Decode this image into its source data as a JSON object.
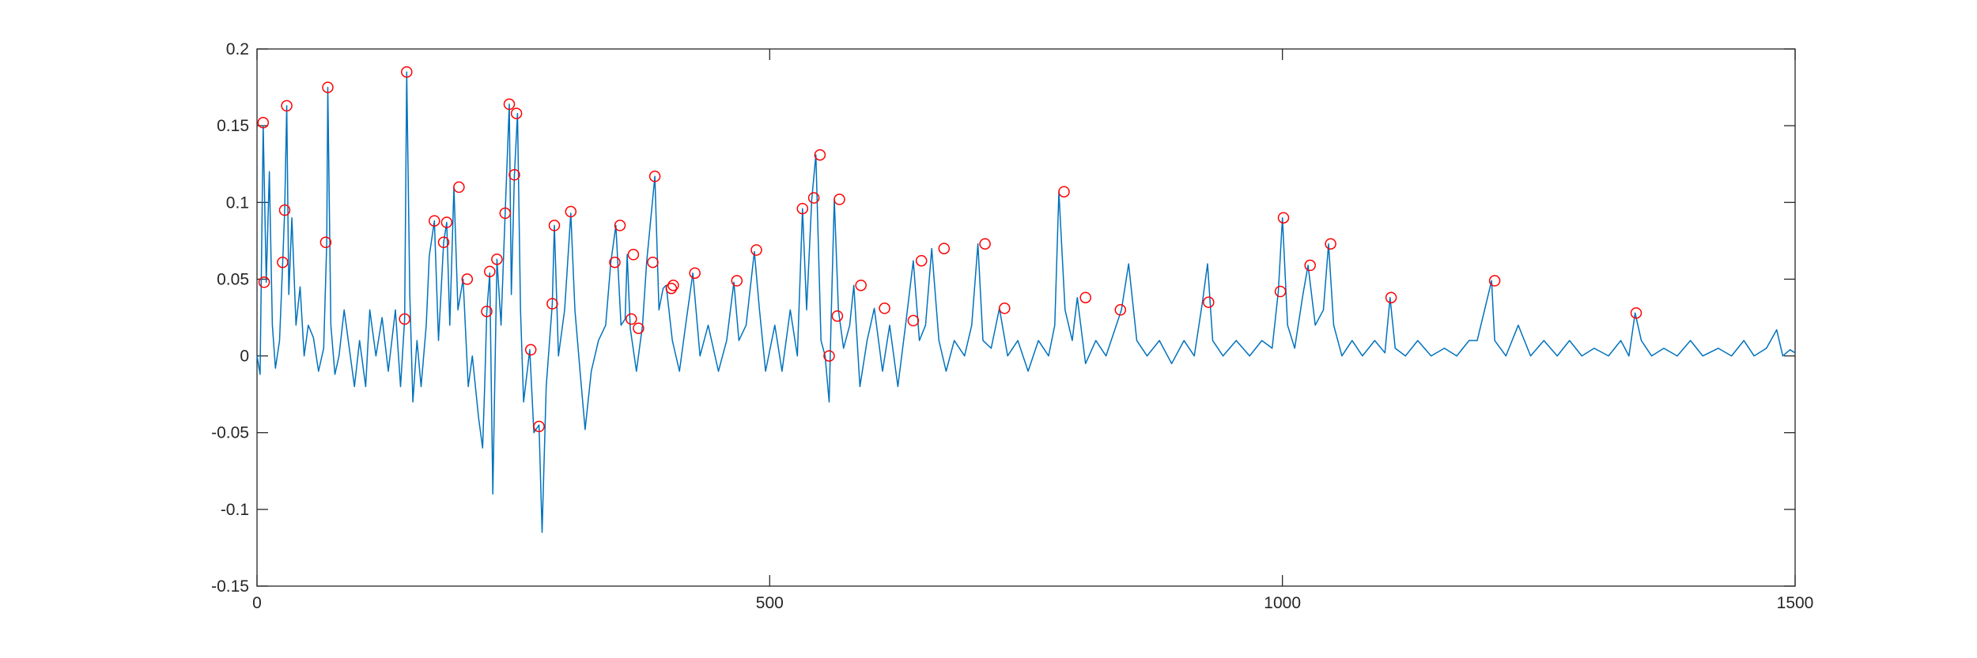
{
  "chart_data": {
    "type": "line",
    "title": "",
    "xlabel": "",
    "ylabel": "",
    "xlim": [
      0,
      1500
    ],
    "ylim": [
      -0.15,
      0.2
    ],
    "x_ticks": [
      "0",
      "500",
      "1000",
      "1500"
    ],
    "y_ticks": [
      "-0.15",
      "-0.1",
      "-0.05",
      "0",
      "0.05",
      "0.1",
      "0.15",
      "0.2"
    ],
    "x_tick_values": [
      0,
      500,
      1000,
      1500
    ],
    "y_tick_values": [
      -0.15,
      -0.1,
      -0.05,
      0,
      0.05,
      0.1,
      0.15,
      0.2
    ],
    "grid": false,
    "box": true,
    "colors": {
      "line": "#0072BD",
      "markers": "#FF0000",
      "axes": "#262626"
    },
    "series": [
      {
        "style": "line",
        "points": [
          [
            0,
            0.0
          ],
          [
            3,
            -0.012
          ],
          [
            6,
            0.15
          ],
          [
            9,
            0.048
          ],
          [
            12,
            0.12
          ],
          [
            15,
            0.02
          ],
          [
            18,
            -0.008
          ],
          [
            22,
            0.01
          ],
          [
            25,
            0.06
          ],
          [
            27,
            0.095
          ],
          [
            29,
            0.163
          ],
          [
            31,
            0.04
          ],
          [
            34,
            0.09
          ],
          [
            38,
            0.02
          ],
          [
            42,
            0.045
          ],
          [
            46,
            0.0
          ],
          [
            50,
            0.02
          ],
          [
            55,
            0.012
          ],
          [
            60,
            -0.01
          ],
          [
            65,
            0.005
          ],
          [
            68,
            0.074
          ],
          [
            69,
            0.175
          ],
          [
            72,
            0.02
          ],
          [
            76,
            -0.012
          ],
          [
            80,
            0.0
          ],
          [
            85,
            0.03
          ],
          [
            90,
            0.005
          ],
          [
            95,
            -0.02
          ],
          [
            100,
            0.01
          ],
          [
            106,
            -0.02
          ],
          [
            110,
            0.03
          ],
          [
            116,
            0.0
          ],
          [
            122,
            0.025
          ],
          [
            128,
            -0.01
          ],
          [
            135,
            0.03
          ],
          [
            140,
            -0.02
          ],
          [
            144,
            0.024
          ],
          [
            146,
            0.185
          ],
          [
            149,
            0.04
          ],
          [
            152,
            -0.03
          ],
          [
            156,
            0.01
          ],
          [
            160,
            -0.02
          ],
          [
            165,
            0.02
          ],
          [
            168,
            0.065
          ],
          [
            173,
            0.088
          ],
          [
            177,
            0.01
          ],
          [
            182,
            0.074
          ],
          [
            185,
            0.087
          ],
          [
            188,
            0.02
          ],
          [
            192,
            0.11
          ],
          [
            196,
            0.03
          ],
          [
            201,
            0.05
          ],
          [
            206,
            -0.02
          ],
          [
            210,
            0.0
          ],
          [
            216,
            -0.04
          ],
          [
            220,
            -0.06
          ],
          [
            222,
            -0.02
          ],
          [
            224,
            0.028
          ],
          [
            227,
            0.054
          ],
          [
            230,
            -0.09
          ],
          [
            234,
            0.063
          ],
          [
            238,
            0.02
          ],
          [
            242,
            0.093
          ],
          [
            246,
            0.164
          ],
          [
            248,
            0.04
          ],
          [
            251,
            0.118
          ],
          [
            254,
            0.158
          ],
          [
            257,
            0.03
          ],
          [
            260,
            -0.03
          ],
          [
            266,
            0.004
          ],
          [
            270,
            -0.05
          ],
          [
            275,
            -0.045
          ],
          [
            278,
            -0.115
          ],
          [
            282,
            -0.02
          ],
          [
            288,
            0.034
          ],
          [
            290,
            0.085
          ],
          [
            294,
            0.0
          ],
          [
            300,
            0.03
          ],
          [
            306,
            0.093
          ],
          [
            310,
            0.03
          ],
          [
            315,
            -0.01
          ],
          [
            320,
            -0.048
          ],
          [
            326,
            -0.01
          ],
          [
            333,
            0.01
          ],
          [
            340,
            0.02
          ],
          [
            345,
            0.061
          ],
          [
            350,
            0.085
          ],
          [
            355,
            0.02
          ],
          [
            359,
            0.024
          ],
          [
            361,
            0.066
          ],
          [
            364,
            0.018
          ],
          [
            370,
            -0.01
          ],
          [
            376,
            0.02
          ],
          [
            380,
            0.061
          ],
          [
            388,
            0.117
          ],
          [
            392,
            0.03
          ],
          [
            396,
            0.044
          ],
          [
            399,
            0.046
          ],
          [
            405,
            0.01
          ],
          [
            412,
            -0.01
          ],
          [
            418,
            0.02
          ],
          [
            425,
            0.054
          ],
          [
            432,
            0.0
          ],
          [
            440,
            0.02
          ],
          [
            450,
            -0.01
          ],
          [
            458,
            0.01
          ],
          [
            465,
            0.048
          ],
          [
            470,
            0.01
          ],
          [
            477,
            0.02
          ],
          [
            485,
            0.068
          ],
          [
            490,
            0.03
          ],
          [
            496,
            -0.01
          ],
          [
            505,
            0.02
          ],
          [
            512,
            -0.01
          ],
          [
            520,
            0.03
          ],
          [
            527,
            0.0
          ],
          [
            532,
            0.096
          ],
          [
            536,
            0.03
          ],
          [
            541,
            0.102
          ],
          [
            545,
            0.131
          ],
          [
            550,
            0.01
          ],
          [
            554,
            0.0
          ],
          [
            558,
            -0.03
          ],
          [
            560,
            0.026
          ],
          [
            563,
            0.102
          ],
          [
            567,
            0.03
          ],
          [
            572,
            0.005
          ],
          [
            578,
            0.02
          ],
          [
            582,
            0.046
          ],
          [
            588,
            -0.02
          ],
          [
            595,
            0.01
          ],
          [
            602,
            0.031
          ],
          [
            610,
            -0.01
          ],
          [
            617,
            0.02
          ],
          [
            625,
            -0.02
          ],
          [
            633,
            0.023
          ],
          [
            640,
            0.062
          ],
          [
            646,
            0.01
          ],
          [
            652,
            0.02
          ],
          [
            658,
            0.07
          ],
          [
            665,
            0.01
          ],
          [
            672,
            -0.01
          ],
          [
            680,
            0.01
          ],
          [
            690,
            0.0
          ],
          [
            697,
            0.02
          ],
          [
            703,
            0.073
          ],
          [
            708,
            0.01
          ],
          [
            716,
            0.005
          ],
          [
            724,
            0.031
          ],
          [
            732,
            0.0
          ],
          [
            742,
            0.01
          ],
          [
            752,
            -0.01
          ],
          [
            762,
            0.01
          ],
          [
            772,
            0.0
          ],
          [
            778,
            0.02
          ],
          [
            782,
            0.107
          ],
          [
            788,
            0.03
          ],
          [
            795,
            0.01
          ],
          [
            800,
            0.038
          ],
          [
            808,
            -0.005
          ],
          [
            818,
            0.01
          ],
          [
            828,
            0.0
          ],
          [
            838,
            0.02
          ],
          [
            843,
            0.03
          ],
          [
            850,
            0.06
          ],
          [
            858,
            0.01
          ],
          [
            868,
            0.0
          ],
          [
            880,
            0.01
          ],
          [
            892,
            -0.005
          ],
          [
            904,
            0.01
          ],
          [
            914,
            0.0
          ],
          [
            922,
            0.035
          ],
          [
            927,
            0.06
          ],
          [
            932,
            0.01
          ],
          [
            942,
            0.0
          ],
          [
            955,
            0.01
          ],
          [
            968,
            0.0
          ],
          [
            980,
            0.01
          ],
          [
            990,
            0.005
          ],
          [
            996,
            0.042
          ],
          [
            1000,
            0.09
          ],
          [
            1005,
            0.02
          ],
          [
            1012,
            0.005
          ],
          [
            1020,
            0.04
          ],
          [
            1025,
            0.059
          ],
          [
            1032,
            0.02
          ],
          [
            1040,
            0.03
          ],
          [
            1045,
            0.073
          ],
          [
            1050,
            0.02
          ],
          [
            1058,
            0.0
          ],
          [
            1068,
            0.01
          ],
          [
            1078,
            0.0
          ],
          [
            1090,
            0.01
          ],
          [
            1100,
            0.002
          ],
          [
            1105,
            0.038
          ],
          [
            1110,
            0.005
          ],
          [
            1120,
            0.0
          ],
          [
            1132,
            0.01
          ],
          [
            1145,
            0.0
          ],
          [
            1158,
            0.005
          ],
          [
            1170,
            0.0
          ],
          [
            1182,
            0.01
          ],
          [
            1190,
            0.01
          ],
          [
            1204,
            0.049
          ],
          [
            1207,
            0.01
          ],
          [
            1218,
            0.0
          ],
          [
            1230,
            0.02
          ],
          [
            1242,
            0.0
          ],
          [
            1255,
            0.01
          ],
          [
            1268,
            0.0
          ],
          [
            1280,
            0.01
          ],
          [
            1292,
            0.0
          ],
          [
            1304,
            0.005
          ],
          [
            1318,
            0.0
          ],
          [
            1330,
            0.01
          ],
          [
            1338,
            0.0
          ],
          [
            1344,
            0.028
          ],
          [
            1350,
            0.01
          ],
          [
            1360,
            0.0
          ],
          [
            1372,
            0.005
          ],
          [
            1385,
            0.0
          ],
          [
            1398,
            0.01
          ],
          [
            1410,
            0.0
          ],
          [
            1425,
            0.005
          ],
          [
            1438,
            0.0
          ],
          [
            1450,
            0.01
          ],
          [
            1460,
            0.0
          ],
          [
            1472,
            0.005
          ],
          [
            1482,
            0.017
          ],
          [
            1488,
            0.0
          ],
          [
            1495,
            0.004
          ],
          [
            1500,
            0.002
          ]
        ]
      },
      {
        "style": "markers",
        "marker": "circle",
        "points": [
          [
            6,
            0.152
          ],
          [
            7,
            0.048
          ],
          [
            25,
            0.061
          ],
          [
            27,
            0.095
          ],
          [
            29,
            0.163
          ],
          [
            67,
            0.074
          ],
          [
            69,
            0.175
          ],
          [
            146,
            0.185
          ],
          [
            144,
            0.024
          ],
          [
            173,
            0.088
          ],
          [
            182,
            0.074
          ],
          [
            185,
            0.087
          ],
          [
            197,
            0.11
          ],
          [
            205,
            0.05
          ],
          [
            224,
            0.029
          ],
          [
            227,
            0.055
          ],
          [
            234,
            0.063
          ],
          [
            242,
            0.093
          ],
          [
            246,
            0.164
          ],
          [
            251,
            0.118
          ],
          [
            253,
            0.158
          ],
          [
            267,
            0.004
          ],
          [
            275,
            -0.046
          ],
          [
            288,
            0.034
          ],
          [
            290,
            0.085
          ],
          [
            306,
            0.094
          ],
          [
            349,
            0.061
          ],
          [
            354,
            0.085
          ],
          [
            365,
            0.024
          ],
          [
            367,
            0.066
          ],
          [
            372,
            0.018
          ],
          [
            386,
            0.061
          ],
          [
            388,
            0.117
          ],
          [
            404,
            0.044
          ],
          [
            406,
            0.046
          ],
          [
            427,
            0.054
          ],
          [
            468,
            0.049
          ],
          [
            487,
            0.069
          ],
          [
            532,
            0.096
          ],
          [
            543,
            0.103
          ],
          [
            549,
            0.131
          ],
          [
            558,
            0.0
          ],
          [
            566,
            0.026
          ],
          [
            568,
            0.102
          ],
          [
            589,
            0.046
          ],
          [
            612,
            0.031
          ],
          [
            640,
            0.023
          ],
          [
            648,
            0.062
          ],
          [
            670,
            0.07
          ],
          [
            710,
            0.073
          ],
          [
            729,
            0.031
          ],
          [
            787,
            0.107
          ],
          [
            808,
            0.038
          ],
          [
            842,
            0.03
          ],
          [
            928,
            0.035
          ],
          [
            998,
            0.042
          ],
          [
            1001,
            0.09
          ],
          [
            1027,
            0.059
          ],
          [
            1047,
            0.073
          ],
          [
            1106,
            0.038
          ],
          [
            1207,
            0.049
          ],
          [
            1345,
            0.028
          ]
        ]
      }
    ]
  }
}
